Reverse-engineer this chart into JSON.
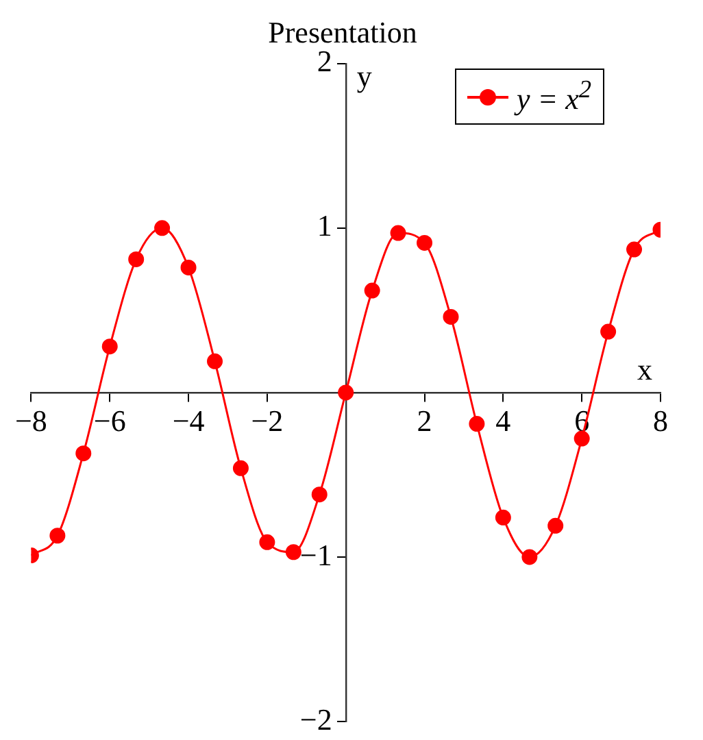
{
  "chart_data": {
    "type": "line",
    "title": "Presentation",
    "xlabel": "x",
    "ylabel": "y",
    "x": [
      -8,
      -7.33,
      -6.67,
      -6,
      -5.33,
      -4.67,
      -4,
      -3.33,
      -2.67,
      -2,
      -1.33,
      -0.67,
      0,
      0.67,
      1.33,
      2,
      2.67,
      3.33,
      4,
      4.67,
      5.33,
      6,
      6.67,
      7.33,
      8
    ],
    "series": [
      {
        "name": "y = x$^{2}$",
        "color": "#ff0000",
        "values": [
          -0.99,
          -0.87,
          -0.37,
          0.28,
          0.81,
          1.0,
          0.76,
          0.19,
          -0.46,
          -0.91,
          -0.97,
          -0.62,
          0,
          0.62,
          0.97,
          0.91,
          0.46,
          -0.19,
          -0.76,
          -1.0,
          -0.81,
          -0.28,
          0.37,
          0.87,
          0.99
        ]
      }
    ],
    "xlim": [
      -8,
      8
    ],
    "ylim": [
      -2,
      2
    ],
    "xticks": [
      -8,
      -6,
      -4,
      -2,
      2,
      4,
      6,
      8
    ],
    "yticks": [
      -2,
      -1,
      1,
      2
    ],
    "grid": false,
    "legend": "top right",
    "marker": "circle",
    "line_style": "solid"
  }
}
